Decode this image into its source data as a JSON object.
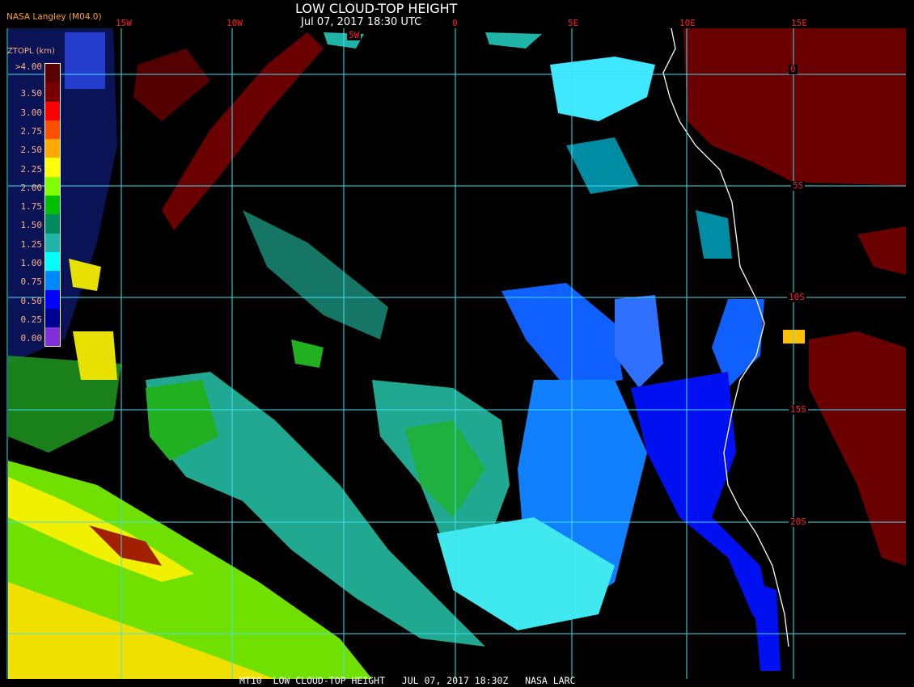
{
  "header": {
    "title": "LOW CLOUD-TOP HEIGHT",
    "datetime": "Jul 07, 2017 18:30 UTC",
    "brand": "NASA Langley (M04.0)"
  },
  "map": {
    "longitude_labels": [
      "15W",
      "10W",
      "5W",
      "0",
      "5E",
      "10E",
      "15E"
    ],
    "latitude_labels": [
      "0",
      "5S",
      "10S",
      "15S",
      "20S"
    ],
    "grid_color": "#40e0f0",
    "coastline_color": "#ffffff"
  },
  "legend": {
    "title": "ZTOPL (km)",
    "items": [
      {
        "label": ">4.00",
        "color": "#5a0000"
      },
      {
        "label": "3.50",
        "color": "#780000"
      },
      {
        "label": "3.00",
        "color": "#ff0000"
      },
      {
        "label": "2.75",
        "color": "#ff5000"
      },
      {
        "label": "2.50",
        "color": "#ffa800"
      },
      {
        "label": "2.25",
        "color": "#ffff00"
      },
      {
        "label": "2.00",
        "color": "#80ff00"
      },
      {
        "label": "1.75",
        "color": "#00c000"
      },
      {
        "label": "1.50",
        "color": "#008c60"
      },
      {
        "label": "1.25",
        "color": "#20b4a8"
      },
      {
        "label": "1.00",
        "color": "#00ffff"
      },
      {
        "label": "0.75",
        "color": "#0088ff"
      },
      {
        "label": "0.50",
        "color": "#0000ff"
      },
      {
        "label": "0.25",
        "color": "#000090"
      },
      {
        "label": "0.00",
        "color": "#8030d8"
      }
    ]
  },
  "footer": {
    "text": "MT10  LOW CLOUD-TOP HEIGHT   JUL 07, 2017 18:30Z   NASA LARC"
  }
}
